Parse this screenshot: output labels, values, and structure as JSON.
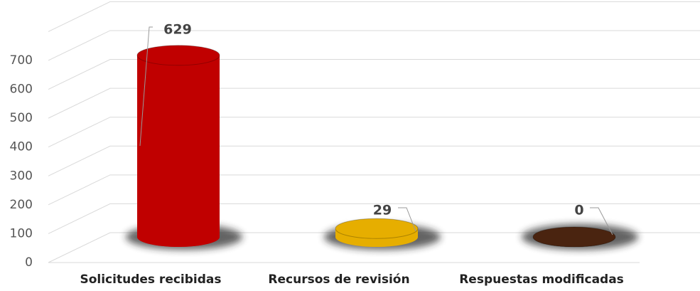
{
  "chart_data": {
    "type": "bar3d",
    "categories": [
      "Solicitudes recibidas",
      "Recursos de revisión",
      "Respuestas modificadas"
    ],
    "values": [
      629,
      29,
      0
    ],
    "colors": [
      "#c00000",
      "#e6ae00",
      "#4a2410"
    ],
    "ylim": [
      0,
      800
    ],
    "yticks": [
      0,
      100,
      200,
      300,
      400,
      500,
      600,
      700
    ],
    "grid": true
  }
}
